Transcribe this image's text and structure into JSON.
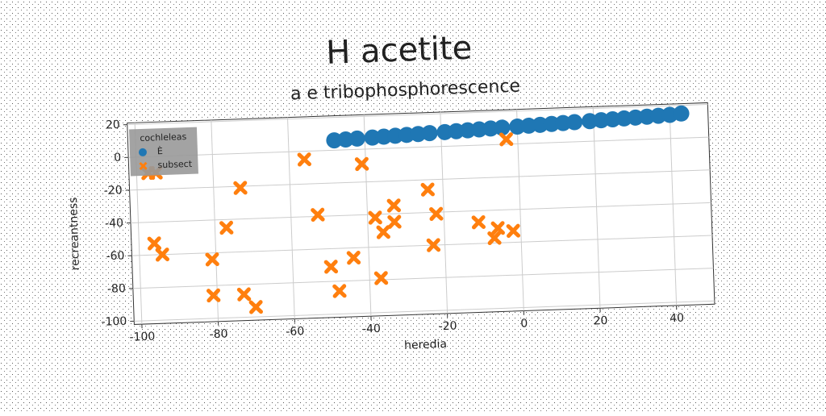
{
  "chart_data": {
    "type": "scatter",
    "title": "H acetite",
    "subtitle": "a e tribophosphorescence",
    "x_label": "heredia",
    "y_label": "recreantness",
    "xlim": [
      -102,
      50
    ],
    "ylim": [
      -102,
      21
    ],
    "xticks": [
      -100,
      -80,
      -60,
      -40,
      -20,
      0,
      20,
      40
    ],
    "yticks": [
      -100,
      -80,
      -60,
      -40,
      -20,
      0,
      20
    ],
    "grid": true,
    "legend_title": "cochleleas",
    "legend_position": "upper left",
    "series": [
      {
        "name": "È",
        "color": "#1f77b4",
        "marker": "circle",
        "x": [
          -48,
          -45,
          -42,
          -38,
          -35,
          -32,
          -29,
          -26,
          -23,
          -19,
          -16,
          -13,
          -10,
          -7,
          -4,
          0,
          3,
          6,
          9,
          12,
          15,
          19,
          22,
          25,
          28,
          31,
          34,
          37,
          40,
          43
        ],
        "y": [
          6,
          6.3,
          6.6,
          6.9,
          7.2,
          7.5,
          7.8,
          8.1,
          8.4,
          8.7,
          9,
          9.3,
          9.6,
          9.9,
          10.2,
          10.5,
          10.8,
          11.1,
          11.4,
          11.7,
          12,
          12.3,
          12.6,
          12.9,
          13.2,
          13.5,
          13.8,
          14.1,
          14.4,
          15
        ]
      },
      {
        "name": "subsect",
        "color": "#ff7f0e",
        "marker": "x",
        "x": [
          -97,
          -95,
          -96,
          -94,
          -81,
          -81,
          -77,
          -73,
          -73,
          -70,
          -56,
          -53,
          -50,
          -48,
          -44,
          -41,
          -38,
          -37,
          -36,
          -33,
          -33,
          -24,
          -23,
          -22,
          -11,
          -7,
          -6,
          -3,
          -2
        ],
        "y": [
          -10,
          -10,
          -53,
          -60,
          -64,
          -86,
          -45,
          -21,
          -86,
          -94,
          -5,
          -39,
          -71,
          -86,
          -66,
          -9,
          -42,
          -79,
          -51,
          -35,
          -45,
          -26,
          -60,
          -41,
          -47,
          -57,
          -51,
          3,
          -53
        ]
      }
    ]
  }
}
